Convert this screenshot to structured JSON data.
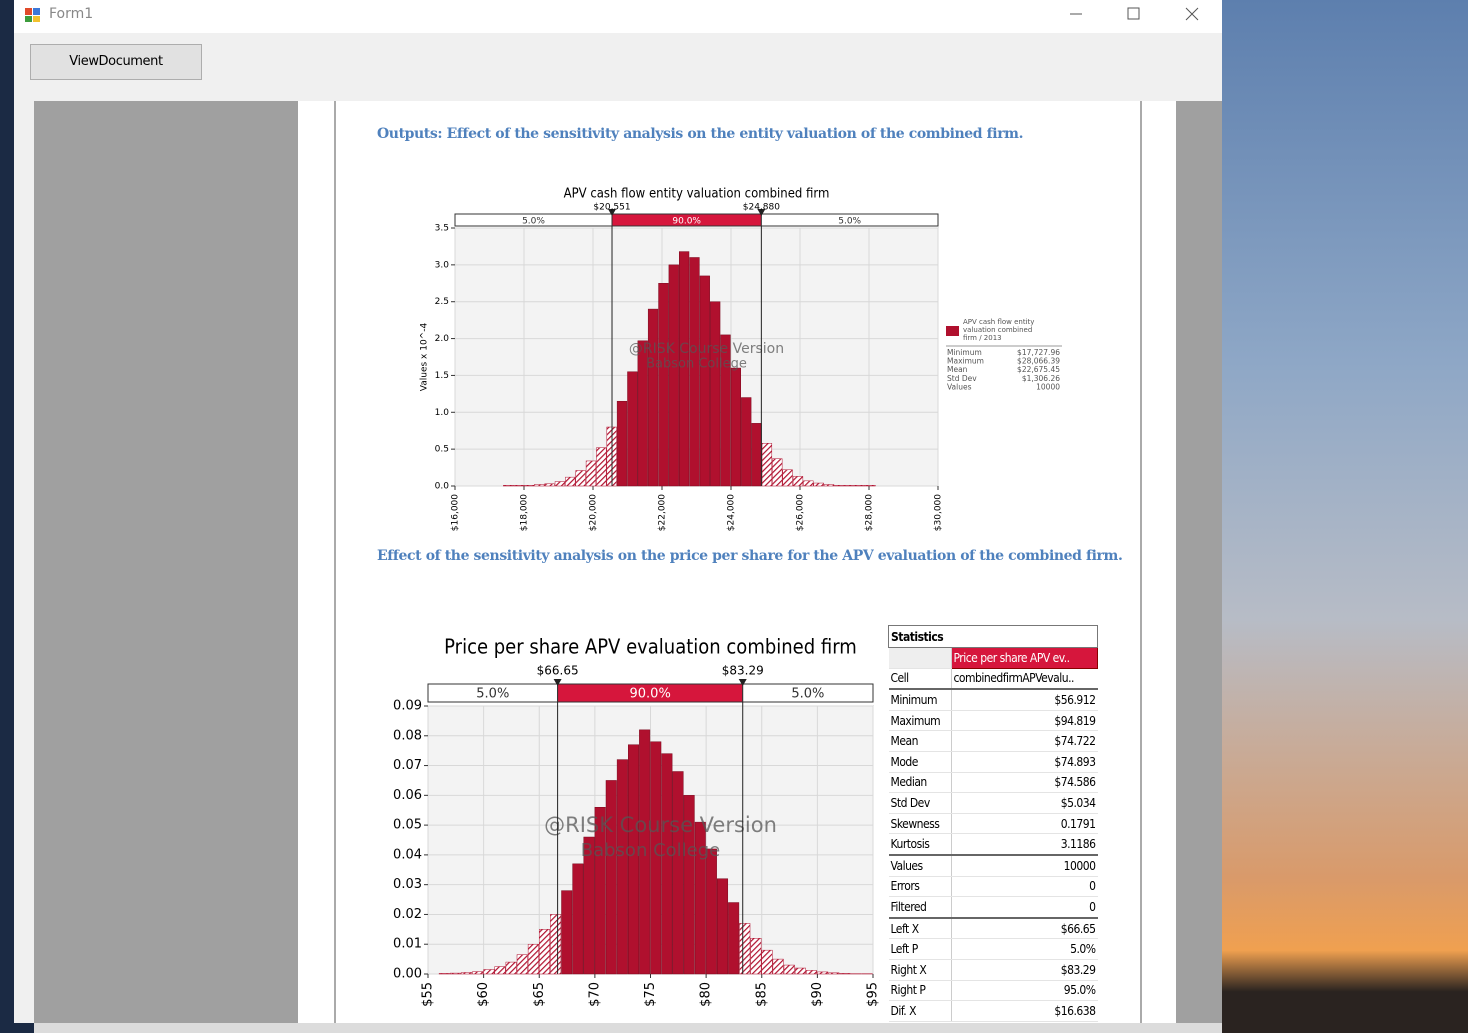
{
  "window": {
    "title": "Form1"
  },
  "toolbar": {
    "button": "ViewDocument"
  },
  "document": {
    "heading1": "Outputs: Effect of the sensitivity analysis on the entity valuation of the combined firm.",
    "chart1": {
      "type": "histogram",
      "title": "APV cash flow entity  valuation combined firm",
      "y_label": "Values x 10^-4",
      "watermark": [
        "@RISK Course Version",
        "Babson College"
      ],
      "color": "#b0102e",
      "band_color": "#d6163c",
      "bins": [
        17400,
        17700,
        18000,
        18300,
        18600,
        18900,
        19200,
        19500,
        19800,
        20100,
        20400,
        20700,
        21000,
        21300,
        21600,
        21900,
        22200,
        22500,
        22800,
        23100,
        23400,
        23700,
        24000,
        24300,
        24600,
        24900,
        25200,
        25500,
        25800,
        26100,
        26400,
        26700,
        27000,
        27300,
        27600,
        27900,
        28200
      ],
      "values": [
        0.01,
        0.01,
        0.01,
        0.02,
        0.03,
        0.06,
        0.12,
        0.21,
        0.34,
        0.52,
        0.8,
        1.15,
        1.55,
        1.97,
        2.4,
        2.75,
        3.0,
        3.18,
        3.1,
        2.85,
        2.5,
        2.05,
        1.6,
        1.2,
        0.85,
        0.58,
        0.37,
        0.22,
        0.13,
        0.07,
        0.04,
        0.02,
        0.01,
        0.01,
        0.01,
        0.01
      ],
      "xlim": [
        16000,
        30000
      ],
      "xticks": [
        {
          "value": 16000,
          "label": "$16,000"
        },
        {
          "value": 18000,
          "label": "$18,000"
        },
        {
          "value": 20000,
          "label": "$20,000"
        },
        {
          "value": 22000,
          "label": "$22,000"
        },
        {
          "value": 24000,
          "label": "$24,000"
        },
        {
          "value": 26000,
          "label": "$26,000"
        },
        {
          "value": 28000,
          "label": "$28,000"
        },
        {
          "value": 30000,
          "label": "$30,000"
        }
      ],
      "ylim": [
        0,
        3.5
      ],
      "yticks": [
        {
          "value": 0,
          "label": "0.0"
        },
        {
          "value": 0.5,
          "label": "0.5"
        },
        {
          "value": 1,
          "label": "1.0"
        },
        {
          "value": 1.5,
          "label": "1.5"
        },
        {
          "value": 2,
          "label": "2.0"
        },
        {
          "value": 2.5,
          "label": "2.5"
        },
        {
          "value": 3,
          "label": "3.0"
        },
        {
          "value": 3.5,
          "label": "3.5"
        }
      ],
      "grid": true,
      "delimiters": [
        {
          "value": 20551,
          "label": "$20,551"
        },
        {
          "value": 24880,
          "label": "$24,880"
        }
      ],
      "bands": [
        "5.0%",
        "90.0%",
        "5.0%"
      ],
      "legend": {
        "label": [
          "APV cash flow entity",
          "valuation combined",
          "firm / 2013"
        ],
        "stats": [
          [
            "Minimum",
            "$17,727.96"
          ],
          [
            "Maximum",
            "$28,066.39"
          ],
          [
            "Mean",
            "$22,675.45"
          ],
          [
            "Std Dev",
            "$1,306.26"
          ],
          [
            "Values",
            "10000"
          ]
        ]
      }
    },
    "heading2": "Effect of the sensitivity analysis on the price per share for the APV evaluation of the combined firm.",
    "chart2": {
      "type": "histogram",
      "title": "Price per share APV evaluation combined firm",
      "watermark": [
        "@RISK Course Version",
        "Babson College"
      ],
      "color": "#b0102e",
      "band_color": "#d6163c",
      "bins": [
        56,
        57,
        58,
        59,
        60,
        61,
        62,
        63,
        64,
        65,
        66,
        67,
        68,
        69,
        70,
        71,
        72,
        73,
        74,
        75,
        76,
        77,
        78,
        79,
        80,
        81,
        82,
        83,
        84,
        85,
        86,
        87,
        88,
        89,
        90,
        91,
        92,
        93,
        94,
        95
      ],
      "values": [
        0.0002,
        0.0003,
        0.0005,
        0.0008,
        0.0015,
        0.0025,
        0.004,
        0.0065,
        0.01,
        0.015,
        0.02,
        0.028,
        0.037,
        0.046,
        0.056,
        0.065,
        0.072,
        0.077,
        0.082,
        0.078,
        0.074,
        0.068,
        0.06,
        0.051,
        0.042,
        0.032,
        0.024,
        0.017,
        0.012,
        0.008,
        0.005,
        0.003,
        0.002,
        0.0012,
        0.0007,
        0.0004,
        0.0002,
        0.0001,
        0.0001
      ],
      "xlim": [
        55,
        95
      ],
      "xticks": [
        {
          "value": 55,
          "label": "$55"
        },
        {
          "value": 60,
          "label": "$60"
        },
        {
          "value": 65,
          "label": "$65"
        },
        {
          "value": 70,
          "label": "$70"
        },
        {
          "value": 75,
          "label": "$75"
        },
        {
          "value": 80,
          "label": "$80"
        },
        {
          "value": 85,
          "label": "$85"
        },
        {
          "value": 90,
          "label": "$90"
        },
        {
          "value": 95,
          "label": "$95"
        }
      ],
      "ylim": [
        0,
        0.09
      ],
      "yticks": [
        {
          "value": 0,
          "label": "0.00"
        },
        {
          "value": 0.01,
          "label": "0.01"
        },
        {
          "value": 0.02,
          "label": "0.02"
        },
        {
          "value": 0.03,
          "label": "0.03"
        },
        {
          "value": 0.04,
          "label": "0.04"
        },
        {
          "value": 0.05,
          "label": "0.05"
        },
        {
          "value": 0.06,
          "label": "0.06"
        },
        {
          "value": 0.07,
          "label": "0.07"
        },
        {
          "value": 0.08,
          "label": "0.08"
        },
        {
          "value": 0.09,
          "label": "0.09"
        }
      ],
      "grid": true,
      "delimiters": [
        {
          "value": 66.65,
          "label": "$66.65"
        },
        {
          "value": 83.29,
          "label": "$83.29"
        }
      ],
      "bands": [
        "5.0%",
        "90.0%",
        "5.0%"
      ]
    },
    "statistics": {
      "title": "Statistics",
      "column": "Price per share APV ev..",
      "rows": [
        [
          "Cell",
          "combinedfirmAPVevalu.."
        ],
        [
          "Minimum",
          "$56.912"
        ],
        [
          "Maximum",
          "$94.819"
        ],
        [
          "Mean",
          "$74.722"
        ],
        [
          "Mode",
          "$74.893"
        ],
        [
          "Median",
          "$74.586"
        ],
        [
          "Std Dev",
          "$5.034"
        ],
        [
          "Skewness",
          "0.1791"
        ],
        [
          "Kurtosis",
          "3.1186"
        ],
        [
          "Values",
          "10000"
        ],
        [
          "Errors",
          "0"
        ],
        [
          "Filtered",
          "0"
        ],
        [
          "Left X",
          "$66.65"
        ],
        [
          "Left P",
          "5.0%"
        ],
        [
          "Right X",
          "$83.29"
        ],
        [
          "Right P",
          "95.0%"
        ],
        [
          "Dif. X",
          "$16.638"
        ]
      ]
    }
  }
}
